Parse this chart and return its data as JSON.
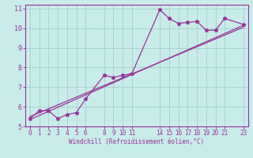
{
  "bg_color": "#c8ecea",
  "grid_color": "#a8d4d0",
  "line_color": "#993399",
  "xlim": [
    -0.5,
    23.5
  ],
  "ylim": [
    5,
    11.2
  ],
  "xticks": [
    0,
    1,
    2,
    3,
    4,
    5,
    6,
    8,
    9,
    10,
    11,
    14,
    15,
    16,
    17,
    18,
    19,
    20,
    21,
    23
  ],
  "yticks": [
    5,
    6,
    7,
    8,
    9,
    10,
    11
  ],
  "xlabel": "Windchill (Refroidissement éolien,°C)",
  "series1_x": [
    0,
    1,
    2,
    3,
    4,
    5,
    6,
    8,
    9,
    10,
    11,
    14,
    15,
    16,
    17,
    18,
    19,
    20,
    21,
    23
  ],
  "series1_y": [
    5.4,
    5.8,
    5.8,
    5.4,
    5.6,
    5.7,
    6.4,
    7.6,
    7.5,
    7.6,
    7.7,
    10.95,
    10.5,
    10.25,
    10.3,
    10.35,
    9.9,
    9.9,
    10.5,
    10.2
  ],
  "series2_x": [
    0,
    23
  ],
  "series2_y": [
    5.35,
    10.15
  ],
  "series3_x": [
    0,
    23
  ],
  "series3_y": [
    5.5,
    10.05
  ],
  "marker": "*",
  "markersize": 3.5,
  "linewidth": 0.9
}
